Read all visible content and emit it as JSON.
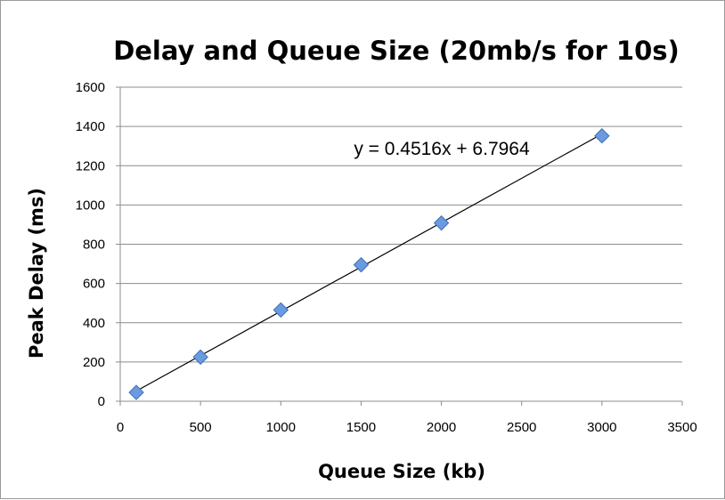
{
  "chart_data": {
    "type": "scatter",
    "title": "Delay and Queue Size (20mb/s for 10s)",
    "xlabel": "Queue Size (kb)",
    "ylabel": "Peak Delay (ms)",
    "xlim": [
      0,
      3500
    ],
    "ylim": [
      0,
      1600
    ],
    "xticks": [
      "0",
      "500",
      "1000",
      "1500",
      "2000",
      "2500",
      "3000",
      "3500"
    ],
    "yticks": [
      "0",
      "200",
      "400",
      "600",
      "800",
      "1000",
      "1200",
      "1400",
      "1600"
    ],
    "grid": "horizontal",
    "marker": "diamond",
    "marker_color": "#6a9be0",
    "series": [
      {
        "points": [
          {
            "x": 100,
            "y": 45
          },
          {
            "x": 500,
            "y": 225
          },
          {
            "x": 1000,
            "y": 465
          },
          {
            "x": 1500,
            "y": 695
          },
          {
            "x": 2000,
            "y": 908
          },
          {
            "x": 3000,
            "y": 1352
          }
        ]
      }
    ],
    "trendline": {
      "type": "linear",
      "slope": 0.4516,
      "intercept": 6.7964,
      "x_range": [
        100,
        3000
      ],
      "color": "#000000",
      "equation_label": "y = 0.4516x + 6.7964"
    }
  }
}
